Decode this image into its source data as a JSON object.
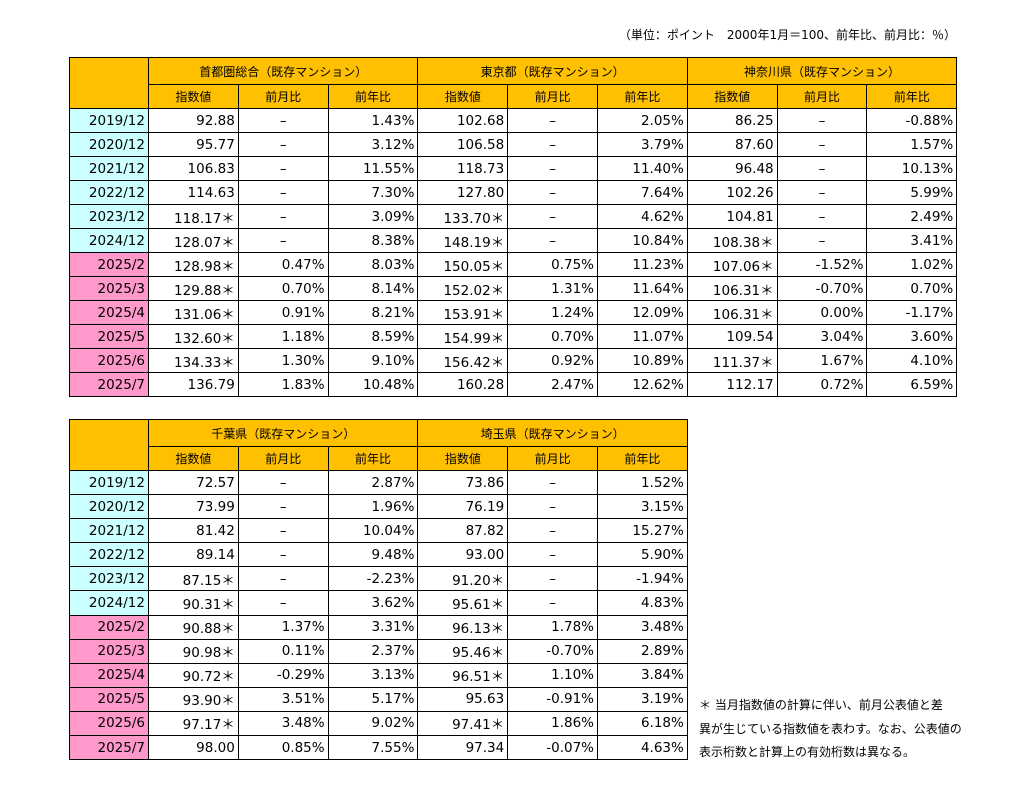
{
  "unit_note": "（単位：ポイント　2000年1月＝100、前年比、前月比：％）",
  "tables": [
    {
      "groups": [
        "首都圏総合（既存マンション）",
        "東京都（既存マンション）",
        "神奈川県（既存マンション）"
      ],
      "columns": [
        "指数値",
        "前月比",
        "前年比"
      ],
      "rows": [
        {
          "date": "2019/12",
          "cells": [
            "92.88",
            "–",
            "1.43%",
            "102.68",
            "–",
            "2.05%",
            "86.25",
            "–",
            "-0.88%"
          ]
        },
        {
          "date": "2020/12",
          "cells": [
            "95.77",
            "–",
            "3.12%",
            "106.58",
            "–",
            "3.79%",
            "87.60",
            "–",
            "1.57%"
          ]
        },
        {
          "date": "2021/12",
          "cells": [
            "106.83",
            "–",
            "11.55%",
            "118.73",
            "–",
            "11.40%",
            "96.48",
            "–",
            "10.13%"
          ]
        },
        {
          "date": "2022/12",
          "cells": [
            "114.63",
            "–",
            "7.30%",
            "127.80",
            "–",
            "7.64%",
            "102.26",
            "–",
            "5.99%"
          ]
        },
        {
          "date": "2023/12",
          "cells": [
            "118.17＊",
            "–",
            "3.09%",
            "133.70＊",
            "–",
            "4.62%",
            "104.81",
            "–",
            "2.49%"
          ]
        },
        {
          "date": "2024/12",
          "cells": [
            "128.07＊",
            "–",
            "8.38%",
            "148.19＊",
            "–",
            "10.84%",
            "108.38＊",
            "–",
            "3.41%"
          ]
        },
        {
          "date": "2025/2",
          "cells": [
            "128.98＊",
            "0.47%",
            "8.03%",
            "150.05＊",
            "0.75%",
            "11.23%",
            "107.06＊",
            "-1.52%",
            "1.02%"
          ]
        },
        {
          "date": "2025/3",
          "cells": [
            "129.88＊",
            "0.70%",
            "8.14%",
            "152.02＊",
            "1.31%",
            "11.64%",
            "106.31＊",
            "-0.70%",
            "0.70%"
          ]
        },
        {
          "date": "2025/4",
          "cells": [
            "131.06＊",
            "0.91%",
            "8.21%",
            "153.91＊",
            "1.24%",
            "12.09%",
            "106.31＊",
            "0.00%",
            "-1.17%"
          ]
        },
        {
          "date": "2025/5",
          "cells": [
            "132.60＊",
            "1.18%",
            "8.59%",
            "154.99＊",
            "0.70%",
            "11.07%",
            "109.54",
            "3.04%",
            "3.60%"
          ]
        },
        {
          "date": "2025/6",
          "cells": [
            "134.33＊",
            "1.30%",
            "9.10%",
            "156.42＊",
            "0.92%",
            "10.89%",
            "111.37＊",
            "1.67%",
            "4.10%"
          ]
        },
        {
          "date": "2025/7",
          "cells": [
            "136.79",
            "1.83%",
            "10.48%",
            "160.28",
            "2.47%",
            "12.62%",
            "112.17",
            "0.72%",
            "6.59%"
          ]
        }
      ]
    },
    {
      "groups": [
        "千葉県（既存マンション）",
        "埼玉県（既存マンション）"
      ],
      "columns": [
        "指数値",
        "前月比",
        "前年比"
      ],
      "rows": [
        {
          "date": "2019/12",
          "cells": [
            "72.57",
            "–",
            "2.87%",
            "73.86",
            "–",
            "1.52%"
          ]
        },
        {
          "date": "2020/12",
          "cells": [
            "73.99",
            "–",
            "1.96%",
            "76.19",
            "–",
            "3.15%"
          ]
        },
        {
          "date": "2021/12",
          "cells": [
            "81.42",
            "–",
            "10.04%",
            "87.82",
            "–",
            "15.27%"
          ]
        },
        {
          "date": "2022/12",
          "cells": [
            "89.14",
            "–",
            "9.48%",
            "93.00",
            "–",
            "5.90%"
          ]
        },
        {
          "date": "2023/12",
          "cells": [
            "87.15＊",
            "–",
            "-2.23%",
            "91.20＊",
            "–",
            "-1.94%"
          ]
        },
        {
          "date": "2024/12",
          "cells": [
            "90.31＊",
            "–",
            "3.62%",
            "95.61＊",
            "–",
            "4.83%"
          ]
        },
        {
          "date": "2025/2",
          "cells": [
            "90.88＊",
            "1.37%",
            "3.31%",
            "96.13＊",
            "1.78%",
            "3.48%"
          ]
        },
        {
          "date": "2025/3",
          "cells": [
            "90.98＊",
            "0.11%",
            "2.37%",
            "95.46＊",
            "-0.70%",
            "2.89%"
          ]
        },
        {
          "date": "2025/4",
          "cells": [
            "90.72＊",
            "-0.29%",
            "3.13%",
            "96.51＊",
            "1.10%",
            "3.84%"
          ]
        },
        {
          "date": "2025/5",
          "cells": [
            "93.90＊",
            "3.51%",
            "5.17%",
            "95.63",
            "-0.91%",
            "3.19%"
          ]
        },
        {
          "date": "2025/6",
          "cells": [
            "97.17＊",
            "3.48%",
            "9.02%",
            "97.41＊",
            "1.86%",
            "6.18%"
          ]
        },
        {
          "date": "2025/7",
          "cells": [
            "98.00",
            "0.85%",
            "7.55%",
            "97.34",
            "-0.07%",
            "4.63%"
          ]
        }
      ]
    }
  ],
  "footnote": [
    "＊ 当月指数値の計算に伴い、前月公表値と差",
    "異が生じている指数値を表わす。なお、公表値の",
    "表示桁数と計算上の有効桁数は異なる。"
  ]
}
